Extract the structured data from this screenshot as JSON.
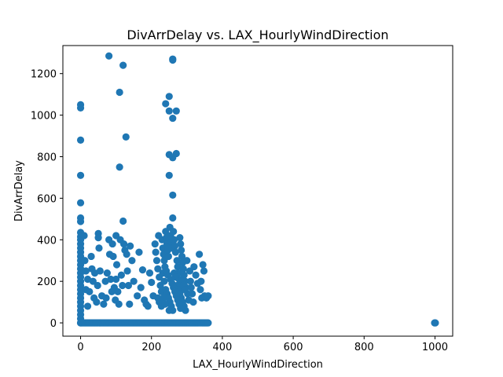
{
  "chart_data": {
    "type": "scatter",
    "title": "DivArrDelay vs. LAX_HourlyWindDirection",
    "xlabel": "LAX_HourlyWindDirection",
    "ylabel": "DivArrDelay",
    "xlim": [
      -50,
      1050
    ],
    "ylim": [
      -64,
      1335
    ],
    "xticks": [
      0,
      200,
      400,
      600,
      800,
      1000
    ],
    "yticks": [
      0,
      200,
      400,
      600,
      800,
      1000,
      1200
    ],
    "grid": false,
    "marker_color": "#1f77b4",
    "series": [
      {
        "points": [
          [
            0,
            1050
          ],
          [
            0,
            1035
          ],
          [
            0,
            880
          ],
          [
            0,
            710
          ],
          [
            0,
            578
          ],
          [
            0,
            505
          ],
          [
            0,
            488
          ],
          [
            0,
            435
          ],
          [
            0,
            415
          ],
          [
            0,
            400
          ],
          [
            0,
            380
          ],
          [
            0,
            360
          ],
          [
            0,
            340
          ],
          [
            0,
            320
          ],
          [
            0,
            300
          ],
          [
            0,
            280
          ],
          [
            0,
            260
          ],
          [
            0,
            240
          ],
          [
            0,
            220
          ],
          [
            0,
            200
          ],
          [
            0,
            180
          ],
          [
            0,
            160
          ],
          [
            0,
            140
          ],
          [
            0,
            120
          ],
          [
            0,
            100
          ],
          [
            0,
            80
          ],
          [
            0,
            60
          ],
          [
            0,
            40
          ],
          [
            0,
            20
          ],
          [
            0,
            0
          ],
          [
            999,
            0
          ],
          [
            1000,
            0
          ],
          [
            1001,
            0
          ],
          [
            10,
            420
          ],
          [
            12,
            300
          ],
          [
            15,
            250
          ],
          [
            15,
            160
          ],
          [
            20,
            210
          ],
          [
            20,
            80
          ],
          [
            25,
            150
          ],
          [
            30,
            320
          ],
          [
            32,
            260
          ],
          [
            35,
            200
          ],
          [
            38,
            120
          ],
          [
            40,
            240
          ],
          [
            45,
            100
          ],
          [
            48,
            180
          ],
          [
            50,
            430
          ],
          [
            50,
            410
          ],
          [
            52,
            360
          ],
          [
            55,
            250
          ],
          [
            60,
            130
          ],
          [
            65,
            90
          ],
          [
            70,
            200
          ],
          [
            72,
            120
          ],
          [
            75,
            240
          ],
          [
            80,
            1285
          ],
          [
            80,
            400
          ],
          [
            82,
            330
          ],
          [
            85,
            210
          ],
          [
            88,
            150
          ],
          [
            90,
            380
          ],
          [
            92,
            320
          ],
          [
            95,
            170
          ],
          [
            98,
            110
          ],
          [
            100,
            420
          ],
          [
            100,
            210
          ],
          [
            102,
            280
          ],
          [
            105,
            150
          ],
          [
            108,
            90
          ],
          [
            110,
            1110
          ],
          [
            110,
            750
          ],
          [
            112,
            400
          ],
          [
            115,
            230
          ],
          [
            118,
            180
          ],
          [
            120,
            1240
          ],
          [
            120,
            490
          ],
          [
            122,
            380
          ],
          [
            125,
            350
          ],
          [
            128,
            895
          ],
          [
            130,
            330
          ],
          [
            132,
            250
          ],
          [
            135,
            180
          ],
          [
            138,
            90
          ],
          [
            140,
            370
          ],
          [
            145,
            300
          ],
          [
            150,
            200
          ],
          [
            160,
            130
          ],
          [
            165,
            340
          ],
          [
            170,
            170
          ],
          [
            175,
            255
          ],
          [
            180,
            110
          ],
          [
            185,
            90
          ],
          [
            190,
            80
          ],
          [
            195,
            240
          ],
          [
            200,
            195
          ],
          [
            205,
            130
          ],
          [
            210,
            380
          ],
          [
            212,
            340
          ],
          [
            215,
            300
          ],
          [
            218,
            260
          ],
          [
            220,
            420
          ],
          [
            222,
            220
          ],
          [
            225,
            180
          ],
          [
            228,
            150
          ],
          [
            230,
            400
          ],
          [
            232,
            360
          ],
          [
            234,
            330
          ],
          [
            236,
            300
          ],
          [
            238,
            270
          ],
          [
            240,
            1055
          ],
          [
            240,
            440
          ],
          [
            242,
            410
          ],
          [
            244,
            380
          ],
          [
            246,
            350
          ],
          [
            248,
            320
          ],
          [
            250,
            1090
          ],
          [
            250,
            1020
          ],
          [
            250,
            810
          ],
          [
            250,
            710
          ],
          [
            252,
            460
          ],
          [
            254,
            420
          ],
          [
            256,
            390
          ],
          [
            258,
            360
          ],
          [
            260,
            1270
          ],
          [
            260,
            1265
          ],
          [
            260,
            985
          ],
          [
            260,
            795
          ],
          [
            260,
            615
          ],
          [
            260,
            505
          ],
          [
            262,
            440
          ],
          [
            264,
            400
          ],
          [
            266,
            370
          ],
          [
            268,
            340
          ],
          [
            270,
            1020
          ],
          [
            270,
            815
          ],
          [
            272,
            300
          ],
          [
            274,
            270
          ],
          [
            276,
            240
          ],
          [
            278,
            210
          ],
          [
            280,
            410
          ],
          [
            282,
            380
          ],
          [
            284,
            350
          ],
          [
            286,
            320
          ],
          [
            288,
            290
          ],
          [
            290,
            260
          ],
          [
            292,
            230
          ],
          [
            295,
            200
          ],
          [
            298,
            170
          ],
          [
            300,
            300
          ],
          [
            302,
            140
          ],
          [
            305,
            110
          ],
          [
            308,
            250
          ],
          [
            310,
            200
          ],
          [
            312,
            170
          ],
          [
            315,
            140
          ],
          [
            318,
            100
          ],
          [
            320,
            270
          ],
          [
            325,
            230
          ],
          [
            330,
            190
          ],
          [
            335,
            330
          ],
          [
            338,
            160
          ],
          [
            340,
            200
          ],
          [
            342,
            120
          ],
          [
            345,
            280
          ],
          [
            348,
            250
          ],
          [
            350,
            130
          ],
          [
            355,
            120
          ],
          [
            360,
            130
          ],
          [
            218,
            120
          ],
          [
            222,
            100
          ],
          [
            228,
            80
          ],
          [
            232,
            240
          ],
          [
            236,
            200
          ],
          [
            240,
            160
          ],
          [
            244,
            140
          ],
          [
            248,
            120
          ],
          [
            252,
            100
          ],
          [
            256,
            80
          ],
          [
            260,
            60
          ],
          [
            264,
            240
          ],
          [
            268,
            220
          ],
          [
            272,
            180
          ],
          [
            276,
            160
          ],
          [
            280,
            140
          ],
          [
            284,
            120
          ],
          [
            288,
            100
          ],
          [
            292,
            80
          ],
          [
            296,
            60
          ],
          [
            242,
            250
          ],
          [
            246,
            230
          ],
          [
            254,
            210
          ],
          [
            258,
            190
          ],
          [
            262,
            170
          ],
          [
            266,
            150
          ],
          [
            270,
            130
          ],
          [
            274,
            110
          ],
          [
            278,
            90
          ],
          [
            282,
            70
          ],
          [
            286,
            200
          ],
          [
            290,
            180
          ],
          [
            294,
            160
          ],
          [
            234,
            120
          ],
          [
            238,
            90
          ],
          [
            250,
            60
          ]
        ]
      }
    ]
  }
}
